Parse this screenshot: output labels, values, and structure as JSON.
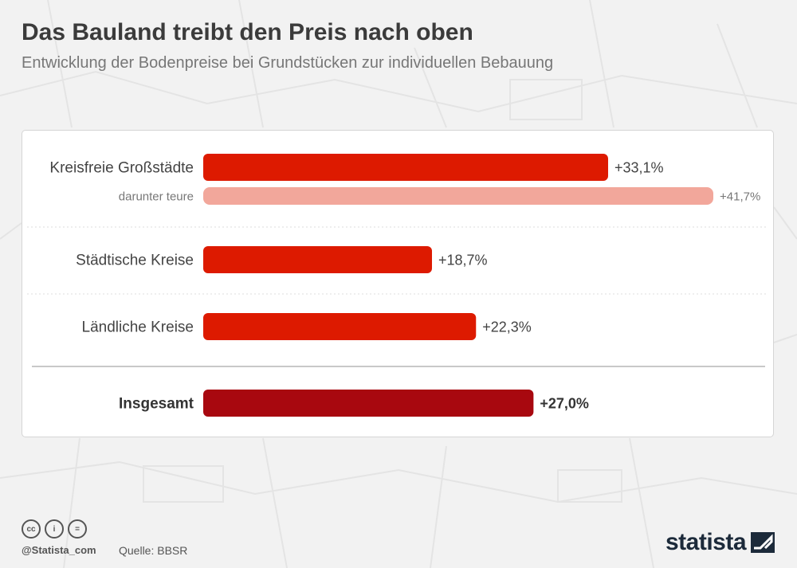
{
  "header": {
    "title": "Das Bauland treibt den Preis nach oben",
    "subtitle": "Entwicklung der Bodenpreise bei Grundstücken zur individuellen Bebauung"
  },
  "chart_data": {
    "type": "bar",
    "orientation": "horizontal",
    "xlim": [
      0,
      41.7
    ],
    "rows": [
      {
        "label": "Kreisfreie Großstädte",
        "value": 33.1,
        "value_label": "+33,1%",
        "style": "primary",
        "color": "#dd1a00"
      },
      {
        "label": "darunter teure",
        "value": 41.7,
        "value_label": "+41,7%",
        "style": "sub",
        "color": "#f2a79b"
      },
      {
        "label": "Städtische Kreise",
        "value": 18.7,
        "value_label": "+18,7%",
        "style": "primary",
        "color": "#dd1a00"
      },
      {
        "label": "Ländliche Kreise",
        "value": 22.3,
        "value_label": "+22,3%",
        "style": "primary",
        "color": "#dd1a00"
      },
      {
        "label": "Insgesamt",
        "value": 27.0,
        "value_label": "+27,0%",
        "style": "total",
        "color": "#a8080f"
      }
    ]
  },
  "footer": {
    "license_icons": [
      "cc-icon",
      "by-icon",
      "nd-icon"
    ],
    "license_glyphs": [
      "cc",
      "i",
      "="
    ],
    "handle": "@Statista_com",
    "source": "Quelle: BBSR",
    "brand": "statista"
  }
}
